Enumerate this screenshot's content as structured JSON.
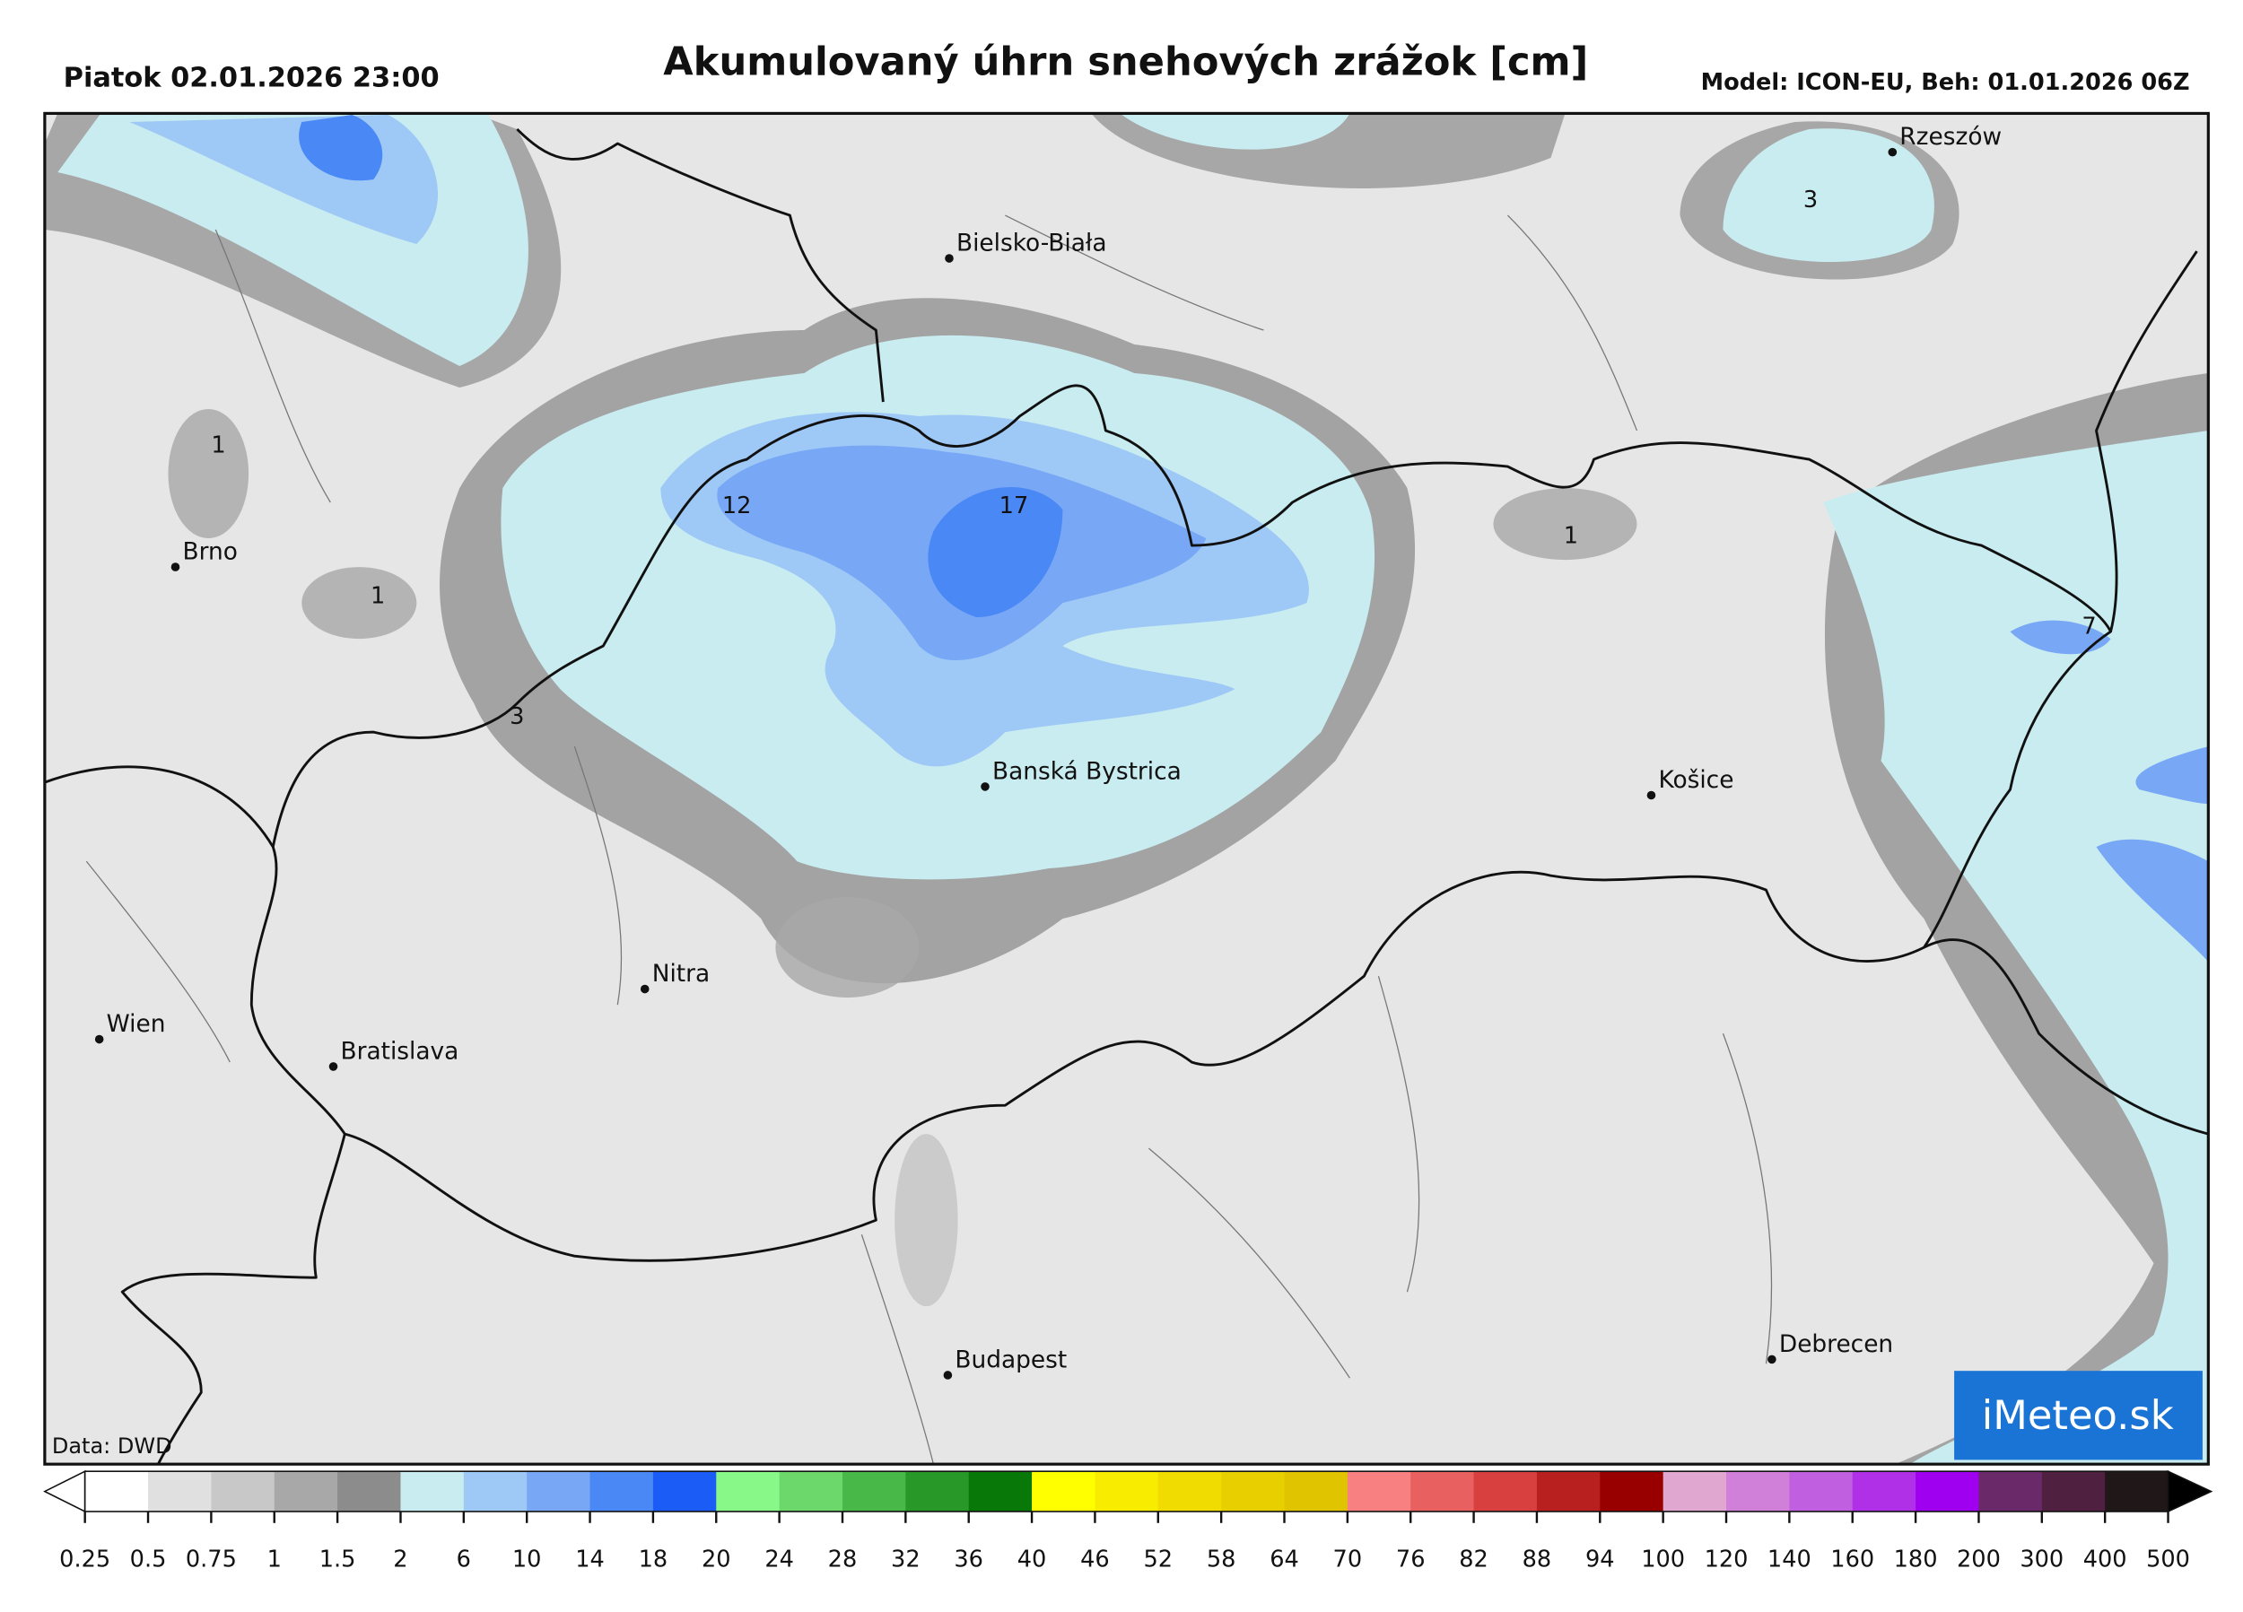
{
  "header": {
    "left": "Piatok 02.01.2026 23:00",
    "title": "Akumulovaný úhrn snehových zrážok [cm]",
    "right": "Model: ICON-EU, Beh: 01.01.2026 06Z"
  },
  "cities": [
    "Rzeszów",
    "Bielsko-Biała",
    "Brno",
    "Banská Bystrica",
    "Košice",
    "Nitra",
    "Wien",
    "Bratislava",
    "Budapest",
    "Debrecen"
  ],
  "contour_labels": [
    3,
    1,
    12,
    17,
    1,
    1,
    7,
    3
  ],
  "credit": "Data: DWD",
  "logo": "iMeteo.sk",
  "legend": {
    "ticks": [
      0.25,
      0.5,
      0.75,
      1,
      1.5,
      2,
      6,
      10,
      14,
      18,
      20,
      24,
      28,
      32,
      36,
      40,
      46,
      52,
      58,
      64,
      70,
      76,
      82,
      88,
      94,
      100,
      120,
      140,
      160,
      180,
      200,
      300,
      400,
      500
    ],
    "under_color": "#ffffff",
    "over_color": "#000000",
    "colors": [
      "#ffffff",
      "#e0e0e0",
      "#c8c8c8",
      "#a8a8a8",
      "#8c8c8c",
      "#c8ecf0",
      "#9ec8f5",
      "#78a8f5",
      "#4a88f5",
      "#1a5cf5",
      "#88f888",
      "#6cd86c",
      "#48b848",
      "#289828",
      "#087808",
      "#ffff00",
      "#f8ec00",
      "#f0dc00",
      "#e8d000",
      "#e0c400",
      "#f88080",
      "#e86060",
      "#d84040",
      "#b82020",
      "#980000",
      "#e0a8d0",
      "#d080d8",
      "#c060e0",
      "#b030e8",
      "#a000f0",
      "#6a2a6a",
      "#502040",
      "#201818"
    ]
  }
}
